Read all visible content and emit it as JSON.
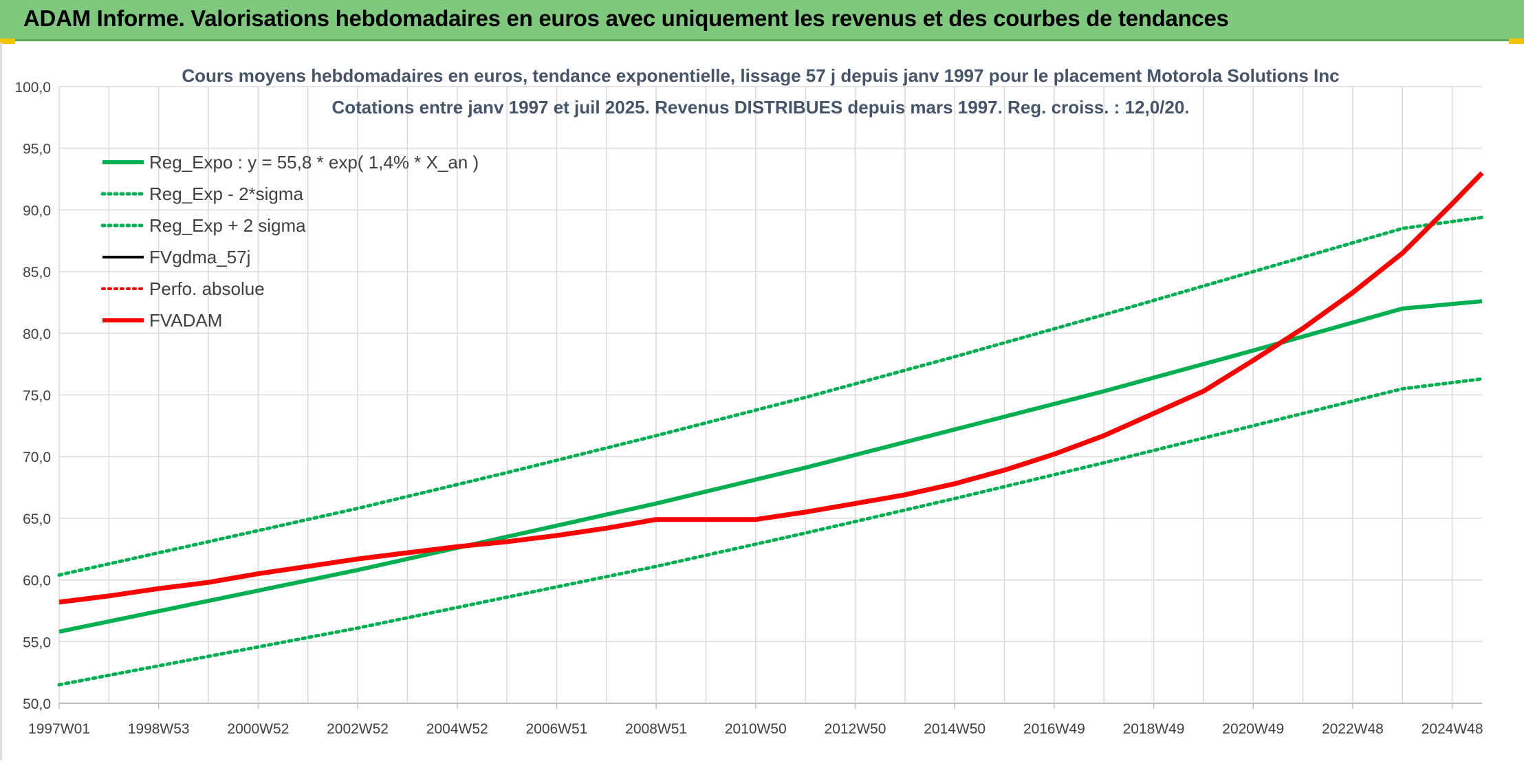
{
  "banner": {
    "title": "ADAM Informe. Valorisations hebdomadaires en euros avec uniquement les revenus et des courbes de tendances"
  },
  "colors": {
    "banner_bg": "#7fc97f",
    "green": "#00b050",
    "red": "#ff0000",
    "black": "#000000",
    "grid": "#d9d9d9",
    "text": "#404040",
    "title": "#44546a"
  },
  "chart_data": {
    "type": "line",
    "title": "Cours moyens hebdomadaires en euros, tendance exponentielle, lissage 57 j depuis janv 1997 pour le placement Motorola Solutions Inc",
    "subtitle": "Cotations entre janv 1997 et juil 2025. Revenus DISTRIBUES depuis mars 1997. Reg. croiss. : 12,0/20.",
    "xlabel": "",
    "ylabel": "",
    "ylim": [
      50,
      100
    ],
    "xlim": [
      1997.0,
      2025.6
    ],
    "y_ticks": [
      "50,0",
      "55,0",
      "60,0",
      "65,0",
      "70,0",
      "75,0",
      "80,0",
      "85,0",
      "90,0",
      "95,0",
      "100,0"
    ],
    "x_ticks": [
      {
        "label": "1997W01",
        "x": 1997.0
      },
      {
        "label": "1998W53",
        "x": 1999.0
      },
      {
        "label": "2000W52",
        "x": 2001.0
      },
      {
        "label": "2002W52",
        "x": 2003.0
      },
      {
        "label": "2004W52",
        "x": 2005.0
      },
      {
        "label": "2006W51",
        "x": 2007.0
      },
      {
        "label": "2008W51",
        "x": 2009.0
      },
      {
        "label": "2010W50",
        "x": 2011.0
      },
      {
        "label": "2012W50",
        "x": 2013.0
      },
      {
        "label": "2014W50",
        "x": 2015.0
      },
      {
        "label": "2016W49",
        "x": 2017.0
      },
      {
        "label": "2018W49",
        "x": 2019.0
      },
      {
        "label": "2020W49",
        "x": 2021.0
      },
      {
        "label": "2022W48",
        "x": 2023.0
      },
      {
        "label": "2024W48",
        "x": 2025.0
      }
    ],
    "grid": true,
    "legend_position": "top-left",
    "series": [
      {
        "name": "Reg_Expo : y = 55,8 * exp( 1,4% *  X_an )",
        "color": "#00b050",
        "style": "solid",
        "width": 6,
        "x": [
          1997.0,
          2000.0,
          2003.0,
          2006.0,
          2009.0,
          2012.0,
          2015.0,
          2018.0,
          2021.0,
          2024.0,
          2025.6
        ],
        "y": [
          55.8,
          58.3,
          60.8,
          63.5,
          66.2,
          69.1,
          72.2,
          75.3,
          78.6,
          82.0,
          82.6
        ]
      },
      {
        "name": "Reg_Exp - 2*sigma",
        "color": "#00b050",
        "style": "dotted",
        "width": 5,
        "x": [
          1997.0,
          2000.0,
          2003.0,
          2006.0,
          2009.0,
          2012.0,
          2015.0,
          2018.0,
          2021.0,
          2024.0,
          2025.6
        ],
        "y": [
          51.5,
          53.8,
          56.1,
          58.6,
          61.1,
          63.8,
          66.6,
          69.5,
          72.5,
          75.5,
          76.3
        ]
      },
      {
        "name": "Reg_Exp + 2 sigma",
        "color": "#00b050",
        "style": "dotted",
        "width": 5,
        "x": [
          1997.0,
          2000.0,
          2003.0,
          2006.0,
          2009.0,
          2012.0,
          2015.0,
          2018.0,
          2021.0,
          2024.0,
          2025.6
        ],
        "y": [
          60.4,
          63.1,
          65.8,
          68.7,
          71.7,
          74.8,
          78.1,
          81.5,
          85.0,
          88.5,
          89.4
        ]
      },
      {
        "name": "FVgdma_57j",
        "color": "#000000",
        "style": "solid",
        "width": 4,
        "x": [],
        "y": []
      },
      {
        "name": "Perfo. absolue",
        "color": "#ff0000",
        "style": "dotted",
        "width": 4,
        "x": [],
        "y": []
      },
      {
        "name": "FVADAM",
        "color": "#ff0000",
        "style": "solid",
        "width": 7,
        "x": [
          1997.0,
          1998.0,
          1999.0,
          2000.0,
          2001.0,
          2002.0,
          2003.0,
          2004.0,
          2005.0,
          2006.0,
          2007.0,
          2008.0,
          2009.0,
          2010.0,
          2011.0,
          2012.0,
          2013.0,
          2014.0,
          2015.0,
          2016.0,
          2017.0,
          2018.0,
          2019.0,
          2020.0,
          2021.0,
          2022.0,
          2023.0,
          2024.0,
          2025.0,
          2025.6
        ],
        "y": [
          58.2,
          58.7,
          59.3,
          59.8,
          60.5,
          61.1,
          61.7,
          62.2,
          62.7,
          63.1,
          63.6,
          64.2,
          64.9,
          64.9,
          64.9,
          65.5,
          66.2,
          66.9,
          67.8,
          68.9,
          70.2,
          71.7,
          73.5,
          75.3,
          77.8,
          80.4,
          83.3,
          86.5,
          90.5,
          93.0
        ]
      }
    ]
  }
}
